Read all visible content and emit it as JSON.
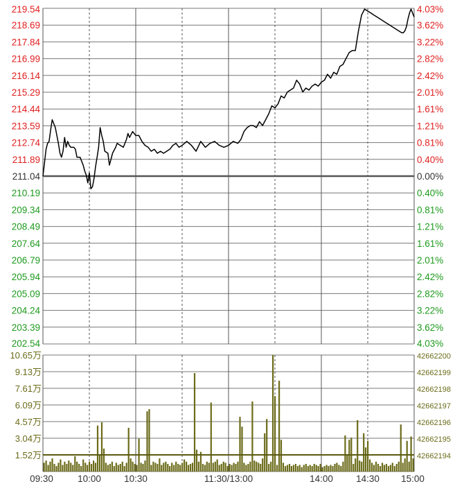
{
  "chart_data": [
    {
      "type": "line",
      "title": "",
      "xlabel": "",
      "ylabel": "",
      "ylim": [
        202.54,
        219.54
      ],
      "baseline": 211.04,
      "left_tick_labels": [
        "219.54",
        "218.69",
        "217.84",
        "216.99",
        "216.14",
        "215.29",
        "214.44",
        "213.59",
        "212.74",
        "211.89",
        "211.04",
        "210.19",
        "209.34",
        "208.49",
        "207.64",
        "206.79",
        "205.94",
        "205.09",
        "204.24",
        "203.39",
        "202.54"
      ],
      "right_tick_labels": [
        "4.03%",
        "3.62%",
        "3.22%",
        "2.82%",
        "2.42%",
        "2.01%",
        "1.61%",
        "1.21%",
        "0.81%",
        "0.40%",
        "0.00%",
        "0.40%",
        "0.81%",
        "1.21%",
        "1.61%",
        "2.01%",
        "2.42%",
        "2.82%",
        "3.22%",
        "3.62%",
        "4.03%"
      ],
      "x_tick_labels": [
        "09:30",
        "10:00",
        "10:30",
        "11:30/13:00",
        "14:00",
        "14:30",
        "15:00"
      ],
      "x_minutes_range": [
        0,
        240
      ],
      "grid": true,
      "colors": {
        "up": "#e02020",
        "down": "#1e9a1e",
        "neutral": "#333333",
        "line": "#000000",
        "grid": "#555555"
      },
      "series": [
        {
          "x": [
            0,
            2,
            3,
            4,
            5,
            6,
            8,
            10,
            11,
            12,
            13,
            14,
            15,
            16,
            17,
            18,
            20,
            21,
            22,
            24,
            26,
            27,
            28,
            29,
            30,
            31,
            32,
            33,
            34,
            35,
            36,
            37,
            38,
            39,
            40,
            42,
            43,
            44,
            45,
            47,
            48,
            50,
            52,
            54,
            55,
            56,
            58,
            60,
            62,
            64,
            66,
            68,
            70,
            72,
            74,
            76,
            78,
            80,
            82,
            84,
            86,
            88,
            90,
            93,
            96,
            99,
            102,
            105,
            108,
            111,
            114,
            117,
            120,
            123,
            126,
            128,
            130,
            132,
            134,
            136,
            138,
            140,
            142,
            144,
            146,
            148,
            150,
            152,
            154,
            156,
            158,
            160,
            162,
            164,
            166,
            168,
            170,
            172,
            174,
            176,
            178,
            180,
            182,
            184,
            186,
            188,
            190,
            192,
            194,
            196,
            198,
            200,
            202,
            204,
            206,
            208,
            210,
            212,
            214,
            216,
            218,
            220,
            222,
            224,
            226,
            228,
            230,
            232,
            233,
            234,
            235,
            236,
            237,
            238,
            239,
            240
          ],
          "values": [
            211.04,
            212.4,
            212.7,
            212.8,
            213.4,
            213.9,
            213.5,
            212.7,
            212.2,
            212.0,
            212.3,
            213.0,
            212.5,
            212.8,
            212.6,
            212.5,
            212.5,
            212.4,
            212.0,
            212.0,
            211.6,
            211.3,
            211.1,
            210.7,
            211.2,
            210.4,
            210.5,
            210.9,
            211.5,
            212.0,
            212.5,
            213.5,
            213.1,
            212.8,
            212.3,
            212.2,
            211.6,
            211.9,
            212.2,
            212.5,
            212.7,
            212.6,
            212.5,
            212.9,
            213.2,
            213.0,
            213.3,
            213.1,
            213.1,
            212.8,
            212.6,
            212.5,
            212.3,
            212.4,
            212.2,
            212.3,
            212.2,
            212.3,
            212.4,
            212.6,
            212.7,
            212.5,
            212.6,
            212.8,
            212.6,
            212.3,
            212.8,
            212.5,
            212.7,
            212.8,
            212.6,
            212.5,
            212.6,
            212.8,
            212.7,
            212.9,
            213.3,
            213.5,
            213.6,
            213.6,
            213.5,
            213.8,
            213.6,
            213.9,
            214.2,
            214.6,
            214.5,
            214.7,
            215.1,
            215.0,
            215.3,
            215.4,
            215.5,
            215.9,
            215.7,
            215.3,
            215.5,
            215.4,
            215.6,
            215.7,
            215.6,
            215.8,
            215.9,
            216.2,
            216.0,
            216.3,
            216.2,
            216.6,
            216.7,
            217.0,
            217.3,
            217.4,
            217.4,
            218.4,
            219.2,
            219.5,
            219.4,
            219.3,
            219.2,
            219.1,
            219.0,
            218.9,
            218.8,
            218.7,
            218.6,
            218.5,
            218.4,
            218.3,
            218.3,
            218.4,
            218.6,
            219.0,
            219.3,
            219.5,
            219.3,
            219.1
          ]
        }
      ]
    },
    {
      "type": "bar",
      "title": "",
      "xlabel": "",
      "ylabel": "",
      "ylim": [
        0,
        10.65
      ],
      "left_tick_labels": [
        "10.65万",
        "9.13万",
        "7.61万",
        "6.09万",
        "4.57万",
        "3.04万",
        "1.52万"
      ],
      "right_tick_labels": [
        "42662200",
        "42662199",
        "42662198",
        "42662197",
        "42662196",
        "42662195",
        "42662194"
      ],
      "ma_line_value": 1.52,
      "colors": {
        "bars": "#6b6b1a",
        "ma_line": "#5a5a10",
        "axis_text": "#6b6b1a"
      },
      "x_minutes_range": [
        0,
        240
      ],
      "values": [
        0.8,
        1.0,
        0.6,
        0.9,
        1.2,
        0.7,
        0.5,
        0.8,
        1.1,
        0.6,
        0.9,
        0.7,
        1.0,
        0.8,
        0.6,
        1.4,
        0.9,
        0.7,
        0.5,
        1.1,
        0.8,
        0.6,
        0.9,
        0.7,
        1.0,
        0.8,
        4.2,
        1.5,
        4.5,
        2.1,
        0.8,
        0.6,
        0.7,
        0.9,
        0.5,
        0.8,
        0.6,
        0.7,
        0.9,
        0.5,
        0.8,
        4.0,
        1.2,
        0.9,
        0.7,
        0.6,
        3.0,
        0.8,
        0.7,
        1.0,
        5.5,
        5.7,
        0.6,
        0.9,
        0.8,
        0.7,
        1.2,
        0.6,
        0.8,
        0.9,
        0.7,
        0.5,
        0.8,
        0.6,
        0.9,
        0.7,
        0.6,
        0.8,
        1.1,
        0.9,
        0.6,
        0.7,
        0.8,
        9.0,
        2.0,
        0.9,
        1.8,
        0.7,
        0.6,
        0.9,
        0.8,
        6.3,
        0.8,
        0.9,
        1.1,
        0.6,
        0.7,
        0.9,
        0.8,
        0.5,
        0.7,
        0.6,
        0.8,
        0.7,
        0.9,
        5.0,
        4.1,
        0.8,
        0.6,
        0.7,
        0.9,
        6.4,
        1.0,
        0.9,
        0.8,
        0.7,
        1.2,
        3.5,
        4.8,
        0.7,
        0.9,
        10.65,
        6.9,
        0.6,
        8.3,
        2.9,
        0.8,
        0.5,
        0.6,
        0.7,
        0.5,
        0.6,
        0.7,
        0.5,
        0.6,
        0.4,
        0.6,
        0.7,
        0.5,
        0.6,
        0.5,
        0.7,
        0.6,
        0.5,
        0.7,
        0.4,
        0.5,
        0.6,
        0.5,
        0.6,
        0.5,
        0.7,
        0.8,
        0.6,
        0.5,
        0.9,
        3.3,
        1.5,
        2.9,
        3.1,
        0.7,
        1.2,
        4.7,
        1.0,
        0.9,
        3.5,
        2.2,
        2.8,
        1.1,
        0.8,
        0.6,
        0.9,
        0.7,
        0.5,
        0.8,
        0.6,
        0.7,
        0.5,
        0.6,
        0.8,
        0.5,
        0.7,
        0.9,
        4.3,
        0.8,
        1.2,
        2.8,
        0.9,
        3.2,
        1.2
      ]
    }
  ]
}
